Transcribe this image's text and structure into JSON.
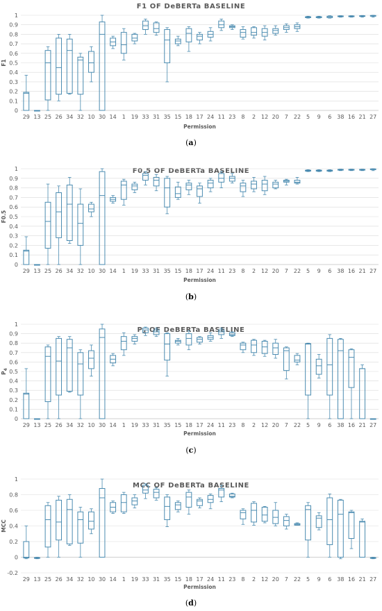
{
  "categories": [
    "29",
    "13",
    "25",
    "26",
    "34",
    "32",
    "10",
    "30",
    "14",
    "1",
    "19",
    "33",
    "31",
    "35",
    "15",
    "18",
    "17",
    "24",
    "11",
    "23",
    "8",
    "2",
    "12",
    "20",
    "7",
    "22",
    "5",
    "9",
    "6",
    "38",
    "16",
    "21",
    "27"
  ],
  "colors": {
    "box": "#4a8bb0",
    "grid": "#d9d9d9",
    "text": "#595959"
  },
  "chart_data": [
    {
      "type": "box",
      "title": "F1 OF DeBERTa BASELINE",
      "xlabel": "Permission",
      "ylabel": "F1",
      "caption": "(a)",
      "ylim": [
        0,
        1
      ],
      "yticks": [
        0,
        0.1,
        0.2,
        0.3,
        0.4,
        0.5,
        0.6,
        0.7,
        0.8,
        0.9,
        1
      ],
      "ytick_labels": [
        "0",
        "0.1",
        "0.2",
        "0.3",
        "0.4",
        "0.5",
        "0.6",
        "0.7",
        "0.8",
        "0.9",
        "1"
      ],
      "grid": true,
      "boxes": [
        [
          0,
          0,
          0.18,
          0.19,
          0.37
        ],
        [
          0,
          0,
          0,
          0,
          0
        ],
        [
          0,
          0.11,
          0.5,
          0.63,
          0.67
        ],
        [
          0.1,
          0.17,
          0.45,
          0.76,
          0.8
        ],
        [
          0.17,
          0.18,
          0.63,
          0.75,
          0.8
        ],
        [
          0,
          0.17,
          0.53,
          0.56,
          0.6
        ],
        [
          0.3,
          0.4,
          0.5,
          0.62,
          0.67
        ],
        [
          0,
          0,
          0.8,
          0.93,
          1
        ],
        [
          0.65,
          0.68,
          0.72,
          0.76,
          0.78
        ],
        [
          0.53,
          0.6,
          0.69,
          0.82,
          0.86
        ],
        [
          0.7,
          0.73,
          0.76,
          0.8,
          0.81
        ],
        [
          0.8,
          0.85,
          0.89,
          0.94,
          0.96
        ],
        [
          0.79,
          0.82,
          0.86,
          0.92,
          0.93
        ],
        [
          0.3,
          0.5,
          0.74,
          0.85,
          0.87
        ],
        [
          0.68,
          0.7,
          0.73,
          0.75,
          0.78
        ],
        [
          0.62,
          0.72,
          0.81,
          0.86,
          0.88
        ],
        [
          0.7,
          0.74,
          0.78,
          0.8,
          0.82
        ],
        [
          0.73,
          0.77,
          0.8,
          0.83,
          0.87
        ],
        [
          0.84,
          0.87,
          0.9,
          0.94,
          0.96
        ],
        [
          0.85,
          0.87,
          0.88,
          0.89,
          0.9
        ],
        [
          0.75,
          0.77,
          0.82,
          0.85,
          0.88
        ],
        [
          0.76,
          0.79,
          0.82,
          0.87,
          0.88
        ],
        [
          0.74,
          0.78,
          0.82,
          0.86,
          0.89
        ],
        [
          0.79,
          0.81,
          0.84,
          0.86,
          0.89
        ],
        [
          0.82,
          0.85,
          0.87,
          0.89,
          0.91
        ],
        [
          0.83,
          0.86,
          0.88,
          0.9,
          0.92
        ],
        [
          0.97,
          0.975,
          0.98,
          0.985,
          0.99
        ],
        [
          0.97,
          0.975,
          0.98,
          0.985,
          0.99
        ],
        [
          0.97,
          0.975,
          0.985,
          0.99,
          0.995
        ],
        [
          0.98,
          0.985,
          0.99,
          0.993,
          0.996
        ],
        [
          0.98,
          0.985,
          0.99,
          0.993,
          0.996
        ],
        [
          0.98,
          0.988,
          0.992,
          0.995,
          0.998
        ],
        [
          0.98,
          0.99,
          0.995,
          0.998,
          1
        ]
      ]
    },
    {
      "type": "box",
      "title": "F0.5 OF DeBERTa BASELINE",
      "xlabel": "Permission",
      "ylabel": "F0.5",
      "caption": "(b)",
      "ylim": [
        0,
        1
      ],
      "yticks": [
        0,
        0.1,
        0.2,
        0.3,
        0.4,
        0.5,
        0.6,
        0.7,
        0.8,
        0.9,
        1
      ],
      "ytick_labels": [
        "0",
        "0.1",
        "0.2",
        "0.3",
        "0.4",
        "0.5",
        "0.6",
        "0.7",
        "0.8",
        "0.9",
        "1"
      ],
      "grid": true,
      "boxes": [
        [
          0,
          0,
          0.14,
          0.15,
          0.29
        ],
        [
          0,
          0,
          0,
          0,
          0
        ],
        [
          0,
          0.17,
          0.45,
          0.65,
          0.84
        ],
        [
          0,
          0.28,
          0.55,
          0.75,
          0.82
        ],
        [
          0.22,
          0.25,
          0.63,
          0.83,
          0.91
        ],
        [
          0,
          0.2,
          0.43,
          0.63,
          0.79
        ],
        [
          0.5,
          0.55,
          0.58,
          0.63,
          0.65
        ],
        [
          0,
          0,
          0.72,
          0.97,
          1
        ],
        [
          0.64,
          0.66,
          0.68,
          0.7,
          0.72
        ],
        [
          0.62,
          0.68,
          0.83,
          0.87,
          0.89
        ],
        [
          0.75,
          0.78,
          0.82,
          0.84,
          0.86
        ],
        [
          0.83,
          0.88,
          0.93,
          0.95,
          0.97
        ],
        [
          0.77,
          0.82,
          0.88,
          0.91,
          0.94
        ],
        [
          0.53,
          0.6,
          0.8,
          0.9,
          0.92
        ],
        [
          0.68,
          0.7,
          0.74,
          0.81,
          0.86
        ],
        [
          0.73,
          0.78,
          0.83,
          0.85,
          0.88
        ],
        [
          0.64,
          0.71,
          0.79,
          0.82,
          0.85
        ],
        [
          0.76,
          0.8,
          0.85,
          0.88,
          0.9
        ],
        [
          0.8,
          0.86,
          0.9,
          0.95,
          0.97
        ],
        [
          0.85,
          0.87,
          0.9,
          0.92,
          0.95
        ],
        [
          0.71,
          0.76,
          0.82,
          0.85,
          0.88
        ],
        [
          0.76,
          0.79,
          0.84,
          0.87,
          0.91
        ],
        [
          0.73,
          0.77,
          0.84,
          0.88,
          0.92
        ],
        [
          0.79,
          0.8,
          0.84,
          0.86,
          0.88
        ],
        [
          0.83,
          0.86,
          0.87,
          0.88,
          0.89
        ],
        [
          0.84,
          0.85,
          0.86,
          0.88,
          0.91
        ],
        [
          0.97,
          0.975,
          0.98,
          0.985,
          0.99
        ],
        [
          0.97,
          0.975,
          0.98,
          0.985,
          0.99
        ],
        [
          0.97,
          0.975,
          0.98,
          0.985,
          0.99
        ],
        [
          0.98,
          0.985,
          0.99,
          0.993,
          0.996
        ],
        [
          0.98,
          0.985,
          0.99,
          0.993,
          0.996
        ],
        [
          0.98,
          0.985,
          0.99,
          0.993,
          0.996
        ],
        [
          0.98,
          0.99,
          0.995,
          0.998,
          1
        ]
      ]
    },
    {
      "type": "box",
      "title": "P4 OF DeBERTa BASELINE",
      "title_main": "P",
      "title_sub": "4",
      "title_rest": " OF DeBERTa BASELINE",
      "xlabel": "Permission",
      "ylabel": "P4",
      "ylabel_main": "P",
      "ylabel_sub": "4",
      "caption": "(c)",
      "ylim": [
        0,
        1
      ],
      "yticks": [
        0,
        0.1,
        0.2,
        0.3,
        0.4,
        0.5,
        0.6,
        0.7,
        0.8,
        0.9,
        1
      ],
      "ytick_labels": [
        "0",
        "0.1",
        "0.2",
        "0.3",
        "0.4",
        "0.5",
        "0.6",
        "0.7",
        "0.8",
        "0.9",
        "1"
      ],
      "grid": true,
      "boxes": [
        [
          0,
          0,
          0.26,
          0.27,
          0.53
        ],
        [
          0,
          0,
          0,
          0,
          0
        ],
        [
          0,
          0.18,
          0.66,
          0.76,
          0.78
        ],
        [
          0,
          0.25,
          0.61,
          0.85,
          0.87
        ],
        [
          0.28,
          0.29,
          0.75,
          0.84,
          0.87
        ],
        [
          0,
          0.25,
          0.58,
          0.7,
          0.73
        ],
        [
          0.45,
          0.53,
          0.64,
          0.72,
          0.78
        ],
        [
          0,
          0,
          0.86,
          0.95,
          1
        ],
        [
          0.56,
          0.59,
          0.63,
          0.67,
          0.69
        ],
        [
          0.67,
          0.73,
          0.82,
          0.87,
          0.91
        ],
        [
          0.79,
          0.82,
          0.85,
          0.87,
          0.89
        ],
        [
          0.88,
          0.91,
          0.94,
          0.96,
          0.97
        ],
        [
          0.87,
          0.89,
          0.92,
          0.94,
          0.96
        ],
        [
          0.45,
          0.62,
          0.79,
          0.9,
          0.91
        ],
        [
          0.78,
          0.8,
          0.82,
          0.83,
          0.85
        ],
        [
          0.73,
          0.78,
          0.85,
          0.9,
          0.93
        ],
        [
          0.79,
          0.81,
          0.84,
          0.86,
          0.87
        ],
        [
          0.82,
          0.84,
          0.86,
          0.88,
          0.91
        ],
        [
          0.85,
          0.89,
          0.92,
          0.94,
          0.96
        ],
        [
          0.87,
          0.88,
          0.89,
          0.91,
          0.92
        ],
        [
          0.7,
          0.73,
          0.78,
          0.8,
          0.81
        ],
        [
          0.67,
          0.7,
          0.78,
          0.83,
          0.84
        ],
        [
          0.66,
          0.69,
          0.76,
          0.82,
          0.83
        ],
        [
          0.64,
          0.68,
          0.75,
          0.8,
          0.84
        ],
        [
          0.42,
          0.51,
          0.72,
          0.75,
          0.76
        ],
        [
          0.57,
          0.6,
          0.62,
          0.67,
          0.69
        ],
        [
          0,
          0.25,
          0.79,
          0.795,
          0.8
        ],
        [
          0.43,
          0.47,
          0.56,
          0.63,
          0.68
        ],
        [
          0,
          0.25,
          0.57,
          0.85,
          0.89
        ],
        [
          0,
          0,
          0.72,
          0.84,
          0.85
        ],
        [
          0,
          0.33,
          0.65,
          0.73,
          0.74
        ],
        [
          0,
          0,
          0.53,
          0.53,
          0.57
        ],
        [
          0,
          0,
          0,
          0,
          0
        ]
      ]
    },
    {
      "type": "box",
      "title": "MCC OF DeBERTa BASELINE",
      "xlabel": "Permission",
      "ylabel": "MCC",
      "caption": "(d)",
      "ylim": [
        -0.2,
        1
      ],
      "yticks": [
        -0.2,
        0,
        0.2,
        0.4,
        0.6,
        0.8,
        1
      ],
      "ytick_labels": [
        "-0.2",
        "0",
        "0.2",
        "0.4",
        "0.6",
        "0.8",
        "1"
      ],
      "grid": true,
      "boxes": [
        [
          -0.02,
          -0.01,
          0.0,
          0.2,
          0.4
        ],
        [
          -0.02,
          -0.015,
          -0.01,
          -0.005,
          0
        ],
        [
          0,
          0.13,
          0.48,
          0.66,
          0.7
        ],
        [
          0,
          0.22,
          0.45,
          0.73,
          0.78
        ],
        [
          0.15,
          0.17,
          0.61,
          0.74,
          0.8
        ],
        [
          0,
          0.18,
          0.48,
          0.58,
          0.64
        ],
        [
          0.3,
          0.36,
          0.46,
          0.58,
          0.62
        ],
        [
          0,
          0,
          0.76,
          0.88,
          1
        ],
        [
          0.56,
          0.58,
          0.64,
          0.7,
          0.72
        ],
        [
          0.56,
          0.58,
          0.7,
          0.8,
          0.83
        ],
        [
          0.63,
          0.67,
          0.72,
          0.76,
          0.8
        ],
        [
          0.75,
          0.82,
          0.86,
          0.92,
          0.94
        ],
        [
          0.73,
          0.76,
          0.83,
          0.87,
          0.89
        ],
        [
          0.39,
          0.48,
          0.65,
          0.77,
          0.8
        ],
        [
          0.58,
          0.61,
          0.67,
          0.7,
          0.72
        ],
        [
          0.55,
          0.64,
          0.77,
          0.83,
          0.86
        ],
        [
          0.63,
          0.66,
          0.72,
          0.74,
          0.76
        ],
        [
          0.62,
          0.7,
          0.74,
          0.79,
          0.81
        ],
        [
          0.71,
          0.77,
          0.86,
          0.88,
          0.92
        ],
        [
          0.76,
          0.77,
          0.78,
          0.81,
          0.82
        ],
        [
          0.42,
          0.49,
          0.57,
          0.6,
          0.62
        ],
        [
          0.41,
          0.45,
          0.6,
          0.69,
          0.71
        ],
        [
          0.44,
          0.46,
          0.54,
          0.64,
          0.65
        ],
        [
          0.4,
          0.43,
          0.51,
          0.6,
          0.7
        ],
        [
          0.36,
          0.4,
          0.47,
          0.52,
          0.55
        ],
        [
          0.41,
          0.41,
          0.42,
          0.43,
          0.44
        ],
        [
          0,
          0.22,
          0.61,
          0.66,
          0.7
        ],
        [
          0.35,
          0.38,
          0.5,
          0.53,
          0.57
        ],
        [
          0,
          0.16,
          0.48,
          0.76,
          0.81
        ],
        [
          -0.02,
          0,
          0.55,
          0.73,
          0.74
        ],
        [
          0.11,
          0.24,
          0.57,
          0.58,
          0.6
        ],
        [
          0,
          0,
          0.45,
          0.46,
          0.49
        ],
        [
          -0.02,
          -0.015,
          -0.01,
          -0.005,
          0
        ]
      ]
    }
  ]
}
